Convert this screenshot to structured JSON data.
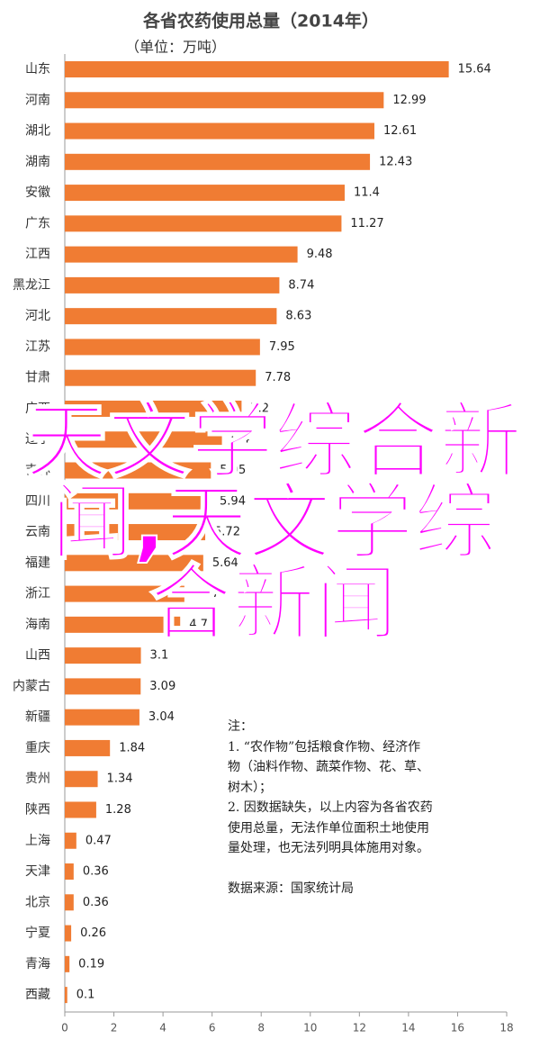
{
  "chart_data": {
    "type": "bar",
    "orientation": "horizontal",
    "title": "各省农药使用总量（2014年）",
    "subtitle": "（单位：万吨）",
    "categories": [
      "山东",
      "河南",
      "湖北",
      "湖南",
      "安徽",
      "广东",
      "江西",
      "黑龙江",
      "河北",
      "江苏",
      "甘肃",
      "广西",
      "辽宁",
      "吉林",
      "四川",
      "云南",
      "福建",
      "浙江",
      "海南",
      "山西",
      "内蒙古",
      "新疆",
      "重庆",
      "贵州",
      "陕西",
      "上海",
      "天津",
      "北京",
      "宁夏",
      "青海",
      "西藏"
    ],
    "values": [
      15.64,
      12.99,
      12.61,
      12.43,
      11.4,
      11.27,
      9.48,
      8.74,
      8.63,
      7.95,
      7.78,
      7.2,
      6.4,
      5.95,
      5.94,
      5.72,
      5.64,
      4.87,
      4.7,
      3.1,
      3.09,
      3.04,
      1.84,
      1.34,
      1.28,
      0.47,
      0.36,
      0.36,
      0.26,
      0.19,
      0.1
    ],
    "color": "#f07c33",
    "xlim": [
      0,
      18
    ],
    "xticks": [
      0,
      2,
      4,
      6,
      8,
      10,
      12,
      14,
      16,
      18
    ],
    "note": [
      "注：",
      "1. “农作物”包括粮食作物、经济作",
      "物（油料作物、蔬菜作物、花、草、",
      "树木）；",
      "2. 因数据缺失，以上内容为各省农药",
      "使用总量，无法作单位面积土地使用",
      "量处理，也无法列明具体施用对象。",
      "",
      "数据来源：国家统计局"
    ],
    "overlay_text": "天文学综合新闻,天文学综合新闻"
  }
}
